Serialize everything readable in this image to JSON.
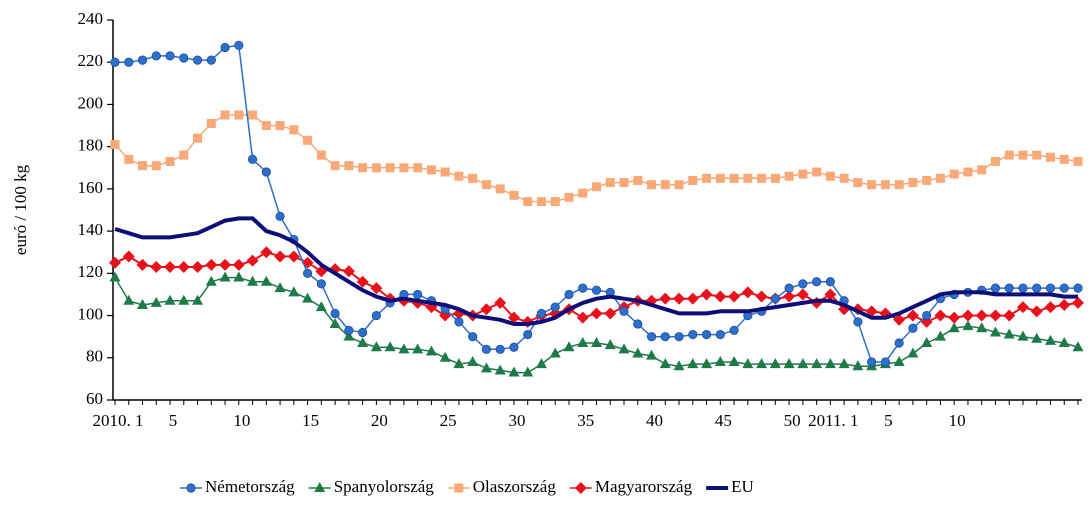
{
  "chart_data": {
    "type": "line",
    "ylabel": "euró / 100 kg",
    "categories": [
      "2010. 1",
      null,
      null,
      null,
      "5",
      null,
      null,
      null,
      null,
      "10",
      null,
      null,
      null,
      null,
      "15",
      null,
      null,
      null,
      null,
      "20",
      null,
      null,
      null,
      null,
      "25",
      null,
      null,
      null,
      null,
      "30",
      null,
      null,
      null,
      null,
      "35",
      null,
      null,
      null,
      null,
      "40",
      null,
      null,
      null,
      null,
      "45",
      null,
      null,
      null,
      null,
      "50",
      null,
      null,
      "2011. 1",
      null,
      null,
      null,
      "5",
      null,
      null,
      null,
      null,
      "10",
      null,
      null,
      null,
      null,
      null,
      null,
      null,
      null,
      null
    ],
    "ylim": [
      60,
      240
    ],
    "yticks": [
      60,
      80,
      100,
      120,
      140,
      160,
      180,
      200,
      220,
      240
    ],
    "legend": "bottom",
    "series": [
      {
        "name": "Németország",
        "color": "#2e6fce",
        "marker": "circle",
        "line_width": 1.5,
        "values": [
          220,
          220,
          221,
          223,
          223,
          222,
          221,
          221,
          227,
          228,
          174,
          168,
          147,
          136,
          120,
          115,
          101,
          93,
          92,
          100,
          106,
          110,
          110,
          107,
          103,
          97,
          90,
          84,
          84,
          85,
          91,
          101,
          104,
          110,
          113,
          112,
          111,
          102,
          96,
          90,
          90,
          90,
          91,
          91,
          91,
          93,
          100,
          102,
          108,
          113,
          115,
          116,
          116,
          107,
          97,
          78,
          78,
          87,
          94,
          100,
          108,
          110,
          111,
          112,
          113,
          113,
          113,
          113,
          113,
          113,
          113
        ]
      },
      {
        "name": "Spanyolország",
        "color": "#1f7a4a",
        "marker": "triangle",
        "line_width": 1.5,
        "values": [
          118,
          107,
          105,
          106,
          107,
          107,
          107,
          116,
          118,
          118,
          116,
          116,
          113,
          111,
          108,
          104,
          96,
          90,
          87,
          85,
          85,
          84,
          84,
          83,
          80,
          77,
          78,
          75,
          74,
          73,
          73,
          77,
          82,
          85,
          87,
          87,
          86,
          84,
          82,
          81,
          77,
          76,
          77,
          77,
          78,
          78,
          77,
          77,
          77,
          77,
          77,
          77,
          77,
          77,
          76,
          76,
          77,
          78,
          82,
          87,
          90,
          94,
          95,
          94,
          92,
          91,
          90,
          89,
          88,
          87,
          85
        ]
      },
      {
        "name": "Olaszország",
        "color": "#f9a877",
        "marker": "square",
        "line_width": 1.5,
        "values": [
          181,
          174,
          171,
          171,
          173,
          176,
          184,
          191,
          195,
          195,
          195,
          190,
          190,
          188,
          183,
          176,
          171,
          171,
          170,
          170,
          170,
          170,
          170,
          169,
          168,
          166,
          165,
          162,
          160,
          157,
          154,
          154,
          154,
          156,
          158,
          161,
          163,
          163,
          164,
          162,
          162,
          162,
          164,
          165,
          165,
          165,
          165,
          165,
          165,
          166,
          167,
          168,
          166,
          165,
          163,
          162,
          162,
          162,
          163,
          164,
          165,
          167,
          168,
          169,
          173,
          176,
          176,
          176,
          175,
          174,
          173
        ]
      },
      {
        "name": "Magyarország",
        "color": "#e8121c",
        "marker": "diamond",
        "line_width": 2,
        "values": [
          125,
          128,
          124,
          123,
          123,
          123,
          123,
          124,
          124,
          124,
          126,
          130,
          128,
          128,
          125,
          121,
          122,
          121,
          116,
          113,
          108,
          107,
          106,
          104,
          100,
          101,
          100,
          103,
          106,
          99,
          97,
          100,
          101,
          103,
          99,
          101,
          101,
          104,
          107,
          107,
          108,
          108,
          108,
          110,
          109,
          109,
          111,
          109,
          108,
          109,
          110,
          106,
          110,
          103,
          103,
          102,
          101,
          98,
          100,
          97,
          100,
          99,
          100,
          100,
          100,
          100,
          104,
          102,
          104,
          105,
          106
        ]
      },
      {
        "name": "EU",
        "color": "#0e0e78",
        "marker": null,
        "line_width": 4,
        "values": [
          141,
          139,
          137,
          137,
          137,
          138,
          139,
          142,
          145,
          146,
          146,
          140,
          138,
          135,
          130,
          124,
          120,
          116,
          112,
          109,
          107,
          108,
          107,
          106,
          105,
          103,
          100,
          99,
          98,
          96,
          96,
          97,
          99,
          103,
          106,
          108,
          109,
          108,
          107,
          105,
          103,
          101,
          101,
          101,
          102,
          102,
          102,
          103,
          104,
          105,
          106,
          107,
          107,
          105,
          102,
          99,
          99,
          101,
          104,
          107,
          110,
          111,
          111,
          111,
          110,
          110,
          110,
          110,
          110,
          109,
          109
        ]
      }
    ]
  }
}
